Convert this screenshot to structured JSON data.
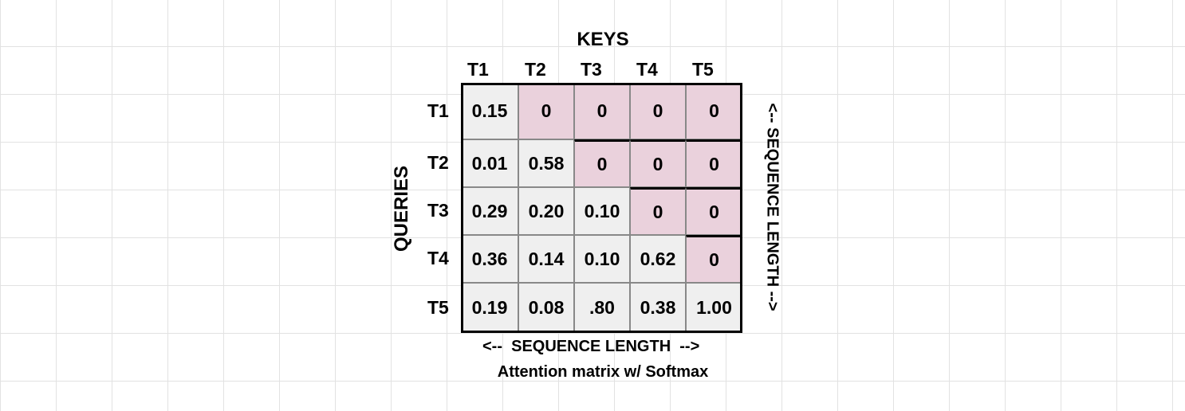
{
  "title": "KEYS",
  "y_title": "QUERIES",
  "right_label": "<-- SEQUENCE LENGTH -->",
  "bottom_label": "<--  SEQUENCE LENGTH  -->",
  "caption": "Attention matrix w/ Softmax",
  "columns": [
    "T1",
    "T2",
    "T3",
    "T4",
    "T5"
  ],
  "rows": [
    "T1",
    "T2",
    "T3",
    "T4",
    "T5"
  ],
  "matrix": [
    [
      "0.15",
      "0",
      "0",
      "0",
      "0"
    ],
    [
      "0.01",
      "0.58",
      "0",
      "0",
      "0"
    ],
    [
      "0.29",
      "0.20",
      "0.10",
      "0",
      "0"
    ],
    [
      "0.36",
      "0.14",
      "0.10",
      "0.62",
      "0"
    ],
    [
      "0.19",
      "0.08",
      ".80",
      "0.38",
      "1.00"
    ]
  ],
  "colors": {
    "lower_triangle": "#efefef",
    "masked_upper": "#ead1dc",
    "grid_lines": "#e2e2e2"
  }
}
